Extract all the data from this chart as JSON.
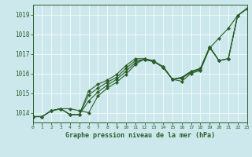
{
  "title": "Graphe pression niveau de la mer (hPa)",
  "bg_color": "#cce8ec",
  "line_color": "#2a5f2a",
  "marker": "D",
  "marker_size": 2.2,
  "xlim": [
    0,
    23
  ],
  "ylim": [
    1013.5,
    1019.5
  ],
  "yticks": [
    1014,
    1015,
    1016,
    1017,
    1018,
    1019
  ],
  "xticks": [
    0,
    1,
    2,
    3,
    4,
    5,
    6,
    7,
    8,
    9,
    10,
    11,
    12,
    13,
    14,
    15,
    16,
    17,
    18,
    19,
    20,
    21,
    22,
    23
  ],
  "series": [
    [
      1013.8,
      1013.8,
      1014.1,
      1014.2,
      1014.2,
      1014.1,
      1014.0,
      1014.85,
      1015.25,
      1015.55,
      1015.95,
      1016.45,
      1016.75,
      1016.65,
      1016.3,
      1015.7,
      1015.6,
      1016.0,
      1016.15,
      1017.3,
      1017.8,
      1018.3,
      1018.95,
      1019.3
    ],
    [
      1013.8,
      1013.8,
      1014.1,
      1014.2,
      1013.9,
      1013.9,
      1014.6,
      1015.05,
      1015.4,
      1015.7,
      1016.1,
      1016.55,
      1016.7,
      1016.6,
      1016.35,
      1015.7,
      1015.75,
      1016.05,
      1016.2,
      1017.3,
      1016.65,
      1016.75,
      1018.95,
      1019.3
    ],
    [
      1013.8,
      1013.8,
      1014.1,
      1014.2,
      1013.9,
      1013.9,
      1014.9,
      1015.25,
      1015.55,
      1015.8,
      1016.25,
      1016.65,
      1016.7,
      1016.6,
      1016.35,
      1015.7,
      1015.8,
      1016.1,
      1016.25,
      1017.35,
      1016.65,
      1016.75,
      1018.95,
      1019.3
    ],
    [
      1013.8,
      1013.8,
      1014.1,
      1014.2,
      1013.9,
      1013.9,
      1015.1,
      1015.45,
      1015.65,
      1015.95,
      1016.4,
      1016.75,
      1016.75,
      1016.6,
      1016.3,
      1015.7,
      1015.8,
      1016.1,
      1016.25,
      1017.35,
      1016.65,
      1016.75,
      1018.95,
      1019.3
    ]
  ]
}
